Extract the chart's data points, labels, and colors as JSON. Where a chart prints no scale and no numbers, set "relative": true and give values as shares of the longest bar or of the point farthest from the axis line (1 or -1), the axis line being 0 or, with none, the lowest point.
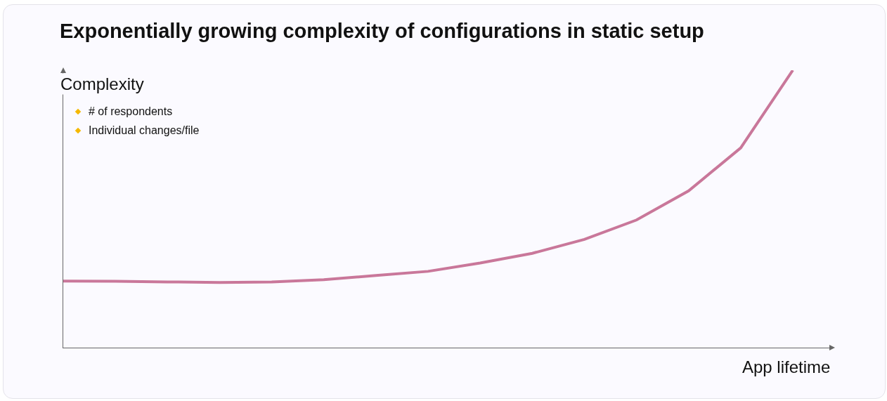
{
  "chart_data": {
    "type": "line",
    "title": "Exponentially growing complexity of configurations in static setup",
    "ylabel": "Complexity",
    "xlabel": "App lifetime",
    "relative": true,
    "categories": [
      null,
      null,
      null,
      null,
      null,
      null,
      null,
      null,
      null,
      null,
      null,
      null,
      null,
      null,
      null
    ],
    "series": [
      {
        "color": "#c9779a",
        "values": [
          0.24,
          0.239,
          0.237,
          0.235,
          0.237,
          0.245,
          0.26,
          0.275,
          0.305,
          0.34,
          0.39,
          0.46,
          0.565,
          0.72,
          1.0
        ]
      }
    ],
    "annotations": [
      "# of respondents",
      "Individual changes/file"
    ],
    "marker": "none",
    "line_style": "solid"
  }
}
